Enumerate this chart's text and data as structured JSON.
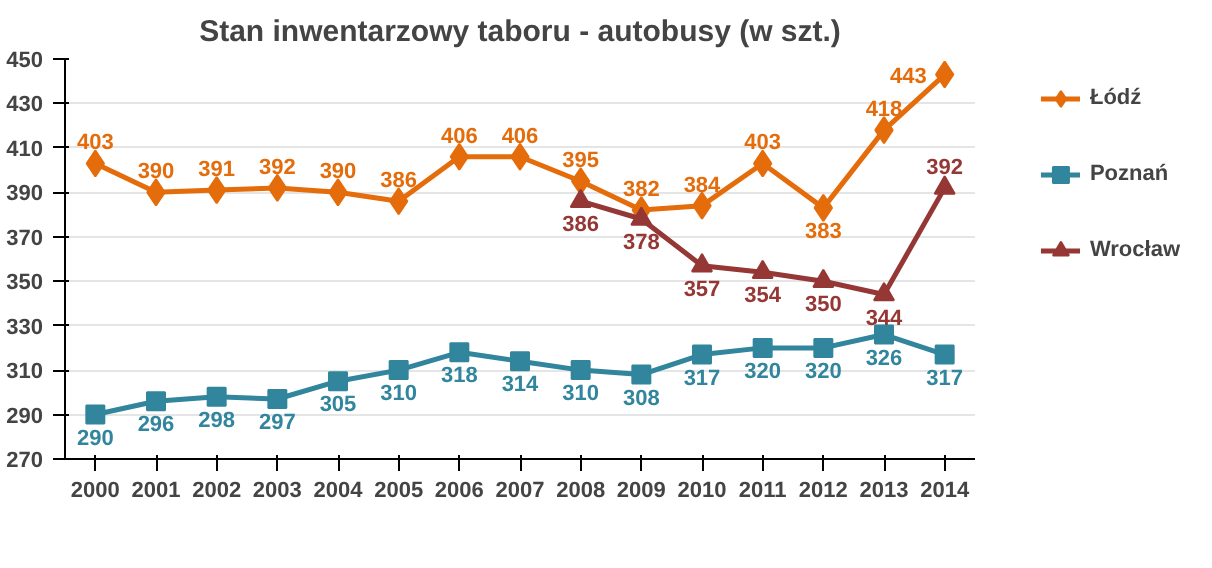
{
  "chart_data": {
    "type": "line",
    "title": "Stan inwentarzowy taboru - autobusy (w szt.)",
    "x": [
      2000,
      2001,
      2002,
      2003,
      2004,
      2005,
      2006,
      2007,
      2008,
      2009,
      2010,
      2011,
      2012,
      2013,
      2014
    ],
    "series": [
      {
        "name": "Łódź",
        "color": "#e46c0a",
        "marker": "diamond",
        "values": [
          403,
          390,
          391,
          392,
          390,
          386,
          406,
          406,
          395,
          382,
          384,
          403,
          383,
          418,
          443
        ]
      },
      {
        "name": "Poznań",
        "color": "#31859c",
        "marker": "square",
        "values": [
          290,
          296,
          298,
          297,
          305,
          310,
          318,
          314,
          310,
          308,
          317,
          320,
          320,
          326,
          317
        ]
      },
      {
        "name": "Wrocław",
        "color": "#953735",
        "marker": "triangle",
        "values": [
          null,
          null,
          null,
          null,
          null,
          null,
          null,
          null,
          386,
          378,
          357,
          354,
          350,
          344,
          392
        ]
      }
    ],
    "xlim": [
      1999.5,
      2014.5
    ],
    "xticks": [
      2000,
      2001,
      2002,
      2003,
      2004,
      2005,
      2006,
      2007,
      2008,
      2009,
      2010,
      2011,
      2012,
      2013,
      2014
    ],
    "ylim": [
      270,
      450
    ],
    "yticks": [
      270,
      290,
      310,
      330,
      350,
      370,
      390,
      410,
      430,
      450
    ],
    "grid": "y",
    "legend": "right",
    "data_labels": true
  }
}
